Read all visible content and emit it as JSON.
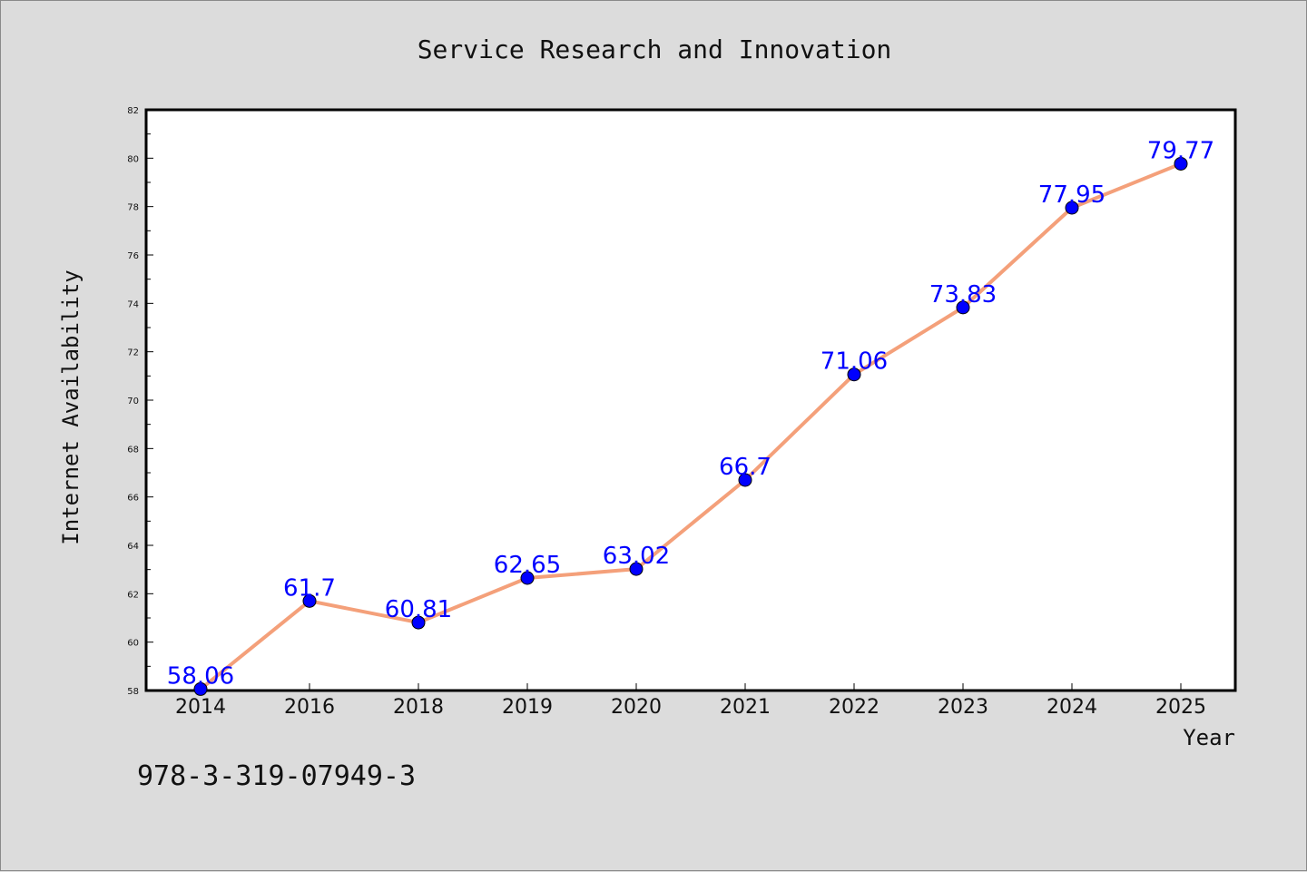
{
  "chart_data": {
    "type": "line",
    "title": "Service Research and Innovation",
    "xlabel": "Year",
    "ylabel": "Internet Availability",
    "categories": [
      "2014",
      "2016",
      "2018",
      "2019",
      "2020",
      "2021",
      "2022",
      "2023",
      "2024",
      "2025"
    ],
    "series": [
      {
        "values": [
          58.06,
          61.7,
          60.81,
          62.65,
          63.02,
          66.7,
          71.06,
          73.83,
          77.95,
          79.77
        ],
        "data_labels": [
          "58.06",
          "61.7",
          "60.81",
          "62.65",
          "63.02",
          "66.7",
          "71.06",
          "73.83",
          "77.95",
          "79.77"
        ],
        "line_color": "#f4a07a",
        "marker_color": "#0000ff"
      }
    ],
    "ylim": [
      58,
      82
    ],
    "yticks": [
      "58",
      "60",
      "62",
      "64",
      "66",
      "68",
      "70",
      "72",
      "74",
      "76",
      "78",
      "80",
      "82"
    ],
    "grid": false,
    "legend": "none"
  },
  "footer": {
    "isbn": "978-3-319-07949-3"
  }
}
